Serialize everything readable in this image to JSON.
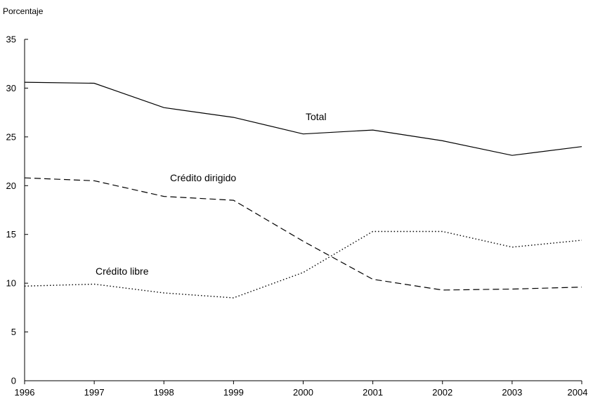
{
  "chart_data": {
    "type": "line",
    "ylabel": "Porcentaje",
    "xlabel": "",
    "title": "",
    "x": [
      "1996",
      "1997",
      "1998",
      "1999",
      "2000",
      "2001",
      "2002",
      "2003",
      "2004"
    ],
    "ylim": [
      0,
      35
    ],
    "yticks": [
      0,
      5,
      10,
      15,
      20,
      25,
      30,
      35
    ],
    "grid": false,
    "legend": "none",
    "series": [
      {
        "name": "Total",
        "style": "solid",
        "color": "#000000",
        "values": [
          30.6,
          30.5,
          28.0,
          27.0,
          25.3,
          25.7,
          24.6,
          23.1,
          24.0
        ]
      },
      {
        "name": "Crédito dirigido",
        "style": "dashed",
        "color": "#000000",
        "values": [
          20.8,
          20.5,
          18.9,
          18.5,
          14.3,
          10.4,
          9.3,
          9.4,
          9.6
        ]
      },
      {
        "name": "Crédito libre",
        "style": "dotted",
        "color": "#000000",
        "values": [
          9.7,
          9.9,
          9.0,
          8.5,
          11.1,
          15.3,
          15.3,
          13.7,
          14.4
        ]
      }
    ]
  }
}
